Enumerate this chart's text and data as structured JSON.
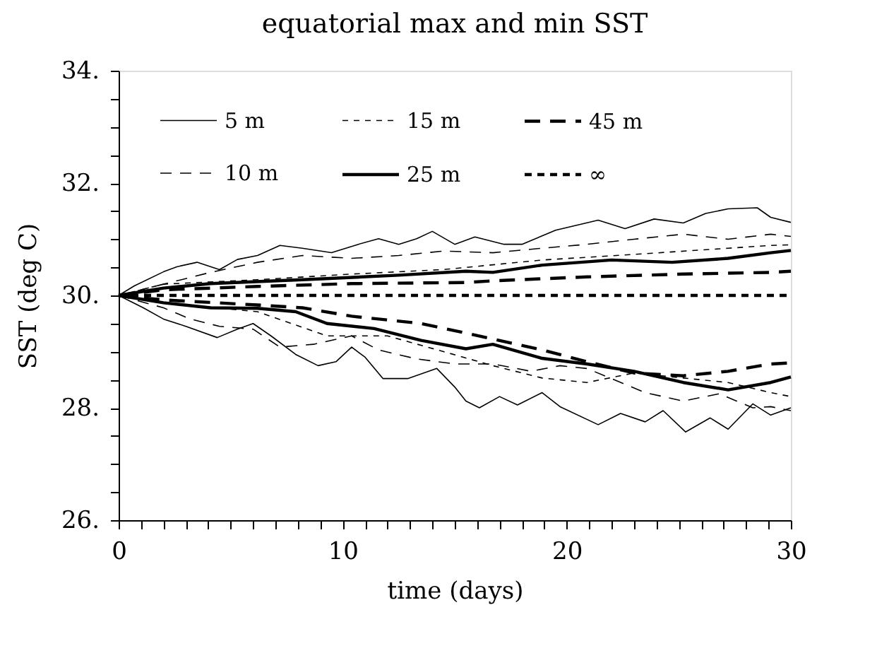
{
  "chart_data": {
    "type": "line",
    "title": "equatorial max and min SST",
    "xlabel": "time (days)",
    "ylabel": "SST (deg C)",
    "xlim": [
      0,
      30
    ],
    "ylim": [
      26,
      34
    ],
    "xticks": [
      0,
      {
        "value": 1,
        "label": null
      },
      {
        "value": 2,
        "label": null
      },
      {
        "value": 3,
        "label": null
      },
      {
        "value": 4,
        "label": null
      },
      {
        "value": 5,
        "label": null
      },
      {
        "value": 6,
        "label": null
      },
      {
        "value": 7,
        "label": null
      },
      {
        "value": 8,
        "label": null
      },
      {
        "value": 9,
        "label": null
      },
      10,
      {
        "value": 11,
        "label": null
      },
      {
        "value": 12,
        "label": null
      },
      {
        "value": 13,
        "label": null
      },
      {
        "value": 14,
        "label": null
      },
      {
        "value": 15,
        "label": null
      },
      {
        "value": 16,
        "label": null
      },
      {
        "value": 17,
        "label": null
      },
      {
        "value": 18,
        "label": null
      },
      {
        "value": 19,
        "label": null
      },
      20,
      {
        "value": 21,
        "label": null
      },
      {
        "value": 22,
        "label": null
      },
      {
        "value": 23,
        "label": null
      },
      {
        "value": 24,
        "label": null
      },
      {
        "value": 25,
        "label": null
      },
      {
        "value": 26,
        "label": null
      },
      {
        "value": 27,
        "label": null
      },
      {
        "value": 28,
        "label": null
      },
      {
        "value": 29,
        "label": null
      },
      30
    ],
    "yticks": [
      {
        "value": 26,
        "label": "26."
      },
      {
        "value": 26.5,
        "label": null
      },
      {
        "value": 27,
        "label": null
      },
      {
        "value": 27.5,
        "label": null
      },
      {
        "value": 28,
        "label": "28."
      },
      {
        "value": 28.5,
        "label": null
      },
      {
        "value": 29,
        "label": null
      },
      {
        "value": 29.5,
        "label": null
      },
      {
        "value": 30,
        "label": "30."
      },
      {
        "value": 30.5,
        "label": null
      },
      {
        "value": 31,
        "label": null
      },
      {
        "value": 31.5,
        "label": null
      },
      {
        "value": 32,
        "label": "32."
      },
      {
        "value": 32.5,
        "label": null
      },
      {
        "value": 33,
        "label": null
      },
      {
        "value": 33.5,
        "label": null
      },
      {
        "value": 34,
        "label": "34."
      }
    ],
    "grid": false,
    "legend": "top",
    "marker": "none",
    "series": [
      {
        "name": "5 m",
        "color": "#000000",
        "line_style": "solid",
        "x": [
          0,
          0.7,
          2.0,
          2.6,
          3.5,
          4.5,
          5.3,
          6.2,
          7.2,
          8.2,
          9.5,
          10.7,
          11.6,
          12.5,
          13.3,
          14.0,
          15.0,
          15.9,
          17.2,
          18.0,
          19.5,
          21.4,
          22.6,
          23.9,
          25.2,
          26.2,
          27.2,
          28.5,
          29.1,
          30
        ],
        "values": [
          30.0,
          30.17,
          30.42,
          30.51,
          30.59,
          30.46,
          30.64,
          30.71,
          30.89,
          30.84,
          30.76,
          30.91,
          31.01,
          30.91,
          31.01,
          31.14,
          30.91,
          31.04,
          30.91,
          30.91,
          31.16,
          31.34,
          31.19,
          31.36,
          31.29,
          31.46,
          31.54,
          31.56,
          31.39,
          31.3
        ]
      },
      {
        "name": "10 m",
        "color": "#000000",
        "line_style": "dashed",
        "x": [
          0,
          2.0,
          4.1,
          6.2,
          8.2,
          10.4,
          12.5,
          14.5,
          16.7,
          18.9,
          20.9,
          23.0,
          25.2,
          27.2,
          29.1,
          30
        ],
        "values": [
          30.0,
          30.2,
          30.41,
          30.59,
          30.71,
          30.66,
          30.71,
          30.79,
          30.76,
          30.84,
          30.91,
          31.0,
          31.09,
          31.0,
          31.09,
          31.05
        ]
      },
      {
        "name": "15 m",
        "color": "#000000",
        "line_style": "dotted",
        "x": [
          0,
          2.0,
          6.2,
          10.4,
          14.5,
          18.9,
          23.0,
          27.2,
          29.1,
          30
        ],
        "values": [
          30.0,
          30.2,
          30.28,
          30.38,
          30.46,
          30.63,
          30.73,
          30.84,
          30.89,
          30.9
        ]
      },
      {
        "name": "25 m",
        "color": "#000000",
        "line_style": "solid",
        "x": [
          0,
          2.0,
          4.1,
          8.2,
          12.5,
          15.5,
          16.7,
          18.9,
          22.0,
          24.7,
          27.2,
          29.1,
          30
        ],
        "values": [
          30.0,
          30.13,
          30.21,
          30.28,
          30.36,
          30.43,
          30.41,
          30.54,
          30.63,
          30.59,
          30.66,
          30.76,
          30.8
        ]
      },
      {
        "name": "45 m",
        "color": "#000000",
        "line_style": "dashed",
        "x": [
          0,
          2.0,
          6.2,
          10.4,
          15.5,
          16.7,
          20.9,
          25.2,
          29.1,
          30
        ],
        "values": [
          30.0,
          30.1,
          30.16,
          30.21,
          30.23,
          30.26,
          30.33,
          30.38,
          30.41,
          30.43
        ]
      },
      {
        "name": "∞",
        "color": "#000000",
        "line_style": "dotted",
        "x": [
          0,
          30
        ],
        "values": [
          30.0,
          30.0
        ]
      },
      {
        "color": "#000000",
        "line_style": "solid",
        "x": [
          0,
          1.1,
          2.0,
          3.0,
          4.4,
          5.3,
          6.0,
          6.8,
          7.9,
          8.9,
          9.7,
          10.4,
          11.0,
          11.8,
          12.9,
          14.2,
          15.0,
          15.5,
          16.1,
          17.0,
          17.8,
          18.9,
          19.7,
          21.4,
          22.4,
          23.5,
          24.3,
          25.3,
          26.4,
          27.2,
          28.3,
          29.1,
          30
        ],
        "values": [
          30.0,
          29.78,
          29.58,
          29.45,
          29.25,
          29.4,
          29.5,
          29.28,
          28.95,
          28.75,
          28.82,
          29.08,
          28.9,
          28.52,
          28.52,
          28.7,
          28.37,
          28.12,
          28.0,
          28.2,
          28.05,
          28.27,
          28.02,
          27.7,
          27.9,
          27.75,
          27.95,
          27.57,
          27.82,
          27.62,
          28.07,
          27.87,
          28.0
        ]
      },
      {
        "color": "#000000",
        "line_style": "dashed",
        "x": [
          0,
          2.0,
          3.2,
          4.5,
          6.0,
          7.2,
          8.7,
          10.4,
          11.6,
          13.3,
          15.0,
          16.7,
          18.4,
          19.7,
          20.9,
          23.5,
          25.2,
          26.8,
          28.3,
          29.1,
          30
        ],
        "values": [
          30.0,
          29.78,
          29.58,
          29.45,
          29.4,
          29.08,
          29.13,
          29.28,
          29.03,
          28.87,
          28.78,
          28.78,
          28.65,
          28.75,
          28.7,
          28.27,
          28.12,
          28.25,
          28.0,
          28.02,
          27.95
        ]
      },
      {
        "color": "#000000",
        "line_style": "dotted",
        "x": [
          0,
          2.0,
          6.2,
          9.3,
          12.0,
          14.5,
          16.7,
          18.9,
          20.9,
          23.0,
          25.2,
          27.2,
          29.1,
          30
        ],
        "values": [
          30.0,
          29.87,
          29.71,
          29.28,
          29.28,
          29.0,
          28.75,
          28.53,
          28.45,
          28.62,
          28.53,
          28.45,
          28.27,
          28.2
        ]
      },
      {
        "color": "#000000",
        "line_style": "solid",
        "x": [
          0,
          2.0,
          4.1,
          6.2,
          7.9,
          9.3,
          11.4,
          13.5,
          15.5,
          16.7,
          18.9,
          20.9,
          23.0,
          25.2,
          27.2,
          29.1,
          30
        ],
        "values": [
          30.0,
          29.87,
          29.78,
          29.77,
          29.71,
          29.5,
          29.41,
          29.2,
          29.05,
          29.13,
          28.88,
          28.78,
          28.65,
          28.45,
          28.32,
          28.45,
          28.55
        ]
      },
      {
        "color": "#000000",
        "line_style": "dashed",
        "x": [
          0,
          2.0,
          6.2,
          8.2,
          10.4,
          13.5,
          15.5,
          18.9,
          20.9,
          23.0,
          25.2,
          27.2,
          29.1,
          30
        ],
        "values": [
          30.0,
          29.92,
          29.83,
          29.78,
          29.63,
          29.5,
          29.33,
          29.03,
          28.82,
          28.62,
          28.57,
          28.65,
          28.78,
          28.8
        ]
      }
    ]
  }
}
